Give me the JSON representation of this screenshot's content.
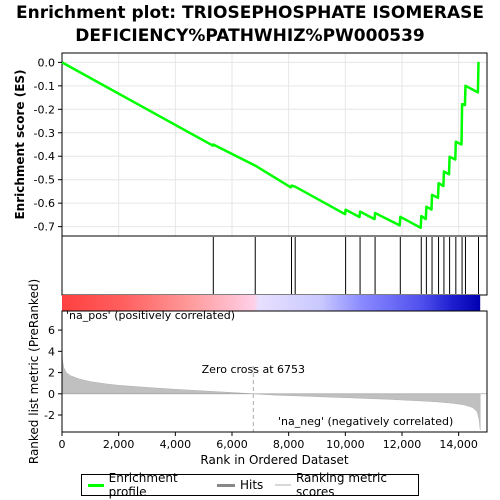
{
  "title_lines": [
    "Enrichment plot: TRIOSEPHOSPHATE ISOMERASE",
    "DEFICIENCY%PATHWHIZ%PW000539"
  ],
  "colors": {
    "enrichment": "#00ff00",
    "hits": "#000000",
    "metric": "#c0c0c0",
    "pos_label": "#ff0000",
    "neg_label": "#0000ff",
    "zero_cross_line": "#aaaaaa"
  },
  "legend": {
    "enrichment": "Enrichment profile",
    "hits": "Hits",
    "metric": "Ranking metric scores"
  },
  "annotations": {
    "pos": "'na_pos' (positively correlated)",
    "neg": "'na_neg' (negatively correlated)",
    "zero_cross": "Zero cross at 6753"
  },
  "chart_data": [
    {
      "type": "line",
      "name": "enrichment-profile",
      "ylabel": "Enrichment score (ES)",
      "xlim": [
        0,
        15000
      ],
      "ylim": [
        -0.74,
        0.04
      ],
      "yticks": [
        0.0,
        -0.1,
        -0.2,
        -0.3,
        -0.4,
        -0.5,
        -0.6,
        -0.7
      ],
      "ytick_labels": [
        "0.0",
        "-0.1",
        "-0.2",
        "-0.3",
        "-0.4",
        "-0.5",
        "-0.6",
        "-0.7"
      ],
      "x": [
        0,
        5330,
        5340,
        6820,
        8080,
        8100,
        8230,
        9990,
        10010,
        10500,
        10520,
        11030,
        11050,
        11920,
        11940,
        12660,
        12680,
        12840,
        12860,
        13040,
        13060,
        13270,
        13290,
        13460,
        13480,
        13660,
        13680,
        13880,
        13900,
        14100,
        14120,
        14220,
        14240,
        14680,
        14700
      ],
      "y": [
        0.0,
        -0.355,
        -0.35,
        -0.44,
        -0.533,
        -0.525,
        -0.53,
        -0.647,
        -0.628,
        -0.659,
        -0.636,
        -0.668,
        -0.642,
        -0.695,
        -0.658,
        -0.705,
        -0.655,
        -0.668,
        -0.615,
        -0.627,
        -0.565,
        -0.577,
        -0.515,
        -0.527,
        -0.465,
        -0.477,
        -0.402,
        -0.414,
        -0.338,
        -0.35,
        -0.178,
        -0.182,
        -0.1,
        -0.128,
        0.002
      ]
    },
    {
      "type": "scatter",
      "name": "hits",
      "x": [
        5340,
        6820,
        8100,
        8230,
        10010,
        10520,
        11050,
        11940,
        12680,
        12860,
        13060,
        13290,
        13480,
        13680,
        13900,
        14120,
        14240,
        14700
      ]
    },
    {
      "type": "area",
      "name": "ranking-metric",
      "ylabel": "Ranked list metric (PreRanked)",
      "xlabel": "Rank in Ordered Dataset",
      "xlim": [
        0,
        15000
      ],
      "ylim": [
        -3.6,
        7.8
      ],
      "xticks": [
        0,
        2000,
        4000,
        6000,
        8000,
        10000,
        12000,
        14000
      ],
      "xtick_labels": [
        "0",
        "2,000",
        "4,000",
        "6,000",
        "8,000",
        "10,000",
        "12,000",
        "14,000"
      ],
      "yticks": [
        6,
        4,
        2,
        0,
        -2
      ],
      "ytick_labels": [
        "6",
        "4",
        "2",
        "0",
        "-2"
      ],
      "x": [
        0,
        20,
        60,
        150,
        300,
        600,
        1000,
        1500,
        2000,
        3000,
        4000,
        5000,
        6000,
        6753,
        7500,
        8500,
        9500,
        10500,
        11500,
        12500,
        13200,
        13800,
        14200,
        14500,
        14650,
        14720,
        14760
      ],
      "y": [
        4.0,
        3.1,
        2.5,
        2.0,
        1.7,
        1.4,
        1.15,
        0.95,
        0.8,
        0.6,
        0.42,
        0.27,
        0.12,
        0.0,
        -0.12,
        -0.22,
        -0.32,
        -0.42,
        -0.52,
        -0.65,
        -0.75,
        -0.9,
        -1.05,
        -1.3,
        -1.7,
        -2.4,
        -3.4
      ]
    }
  ]
}
